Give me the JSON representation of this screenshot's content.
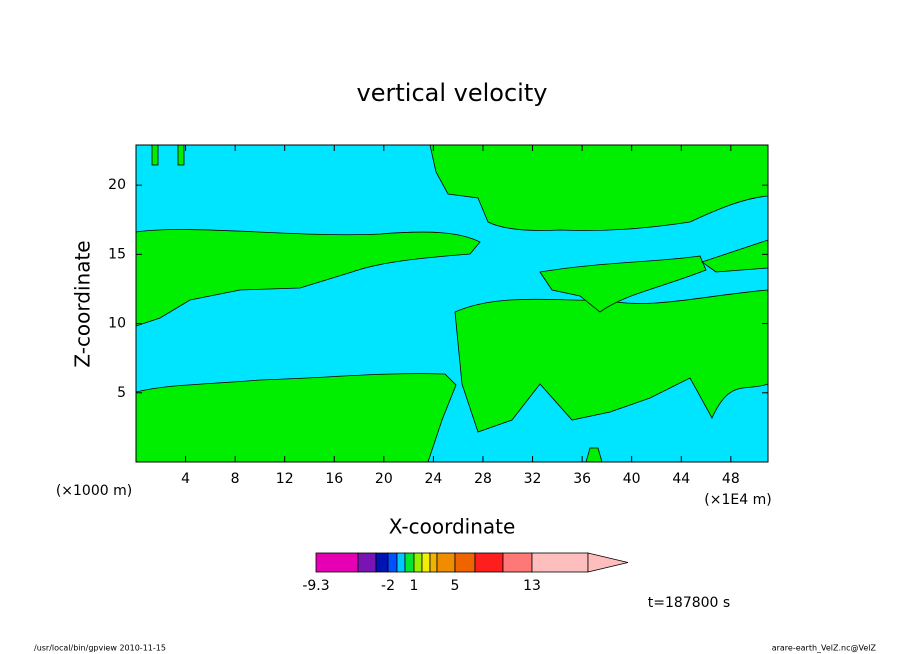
{
  "chart_data": {
    "type": "contour",
    "title": "vertical velocity",
    "x_label": "X-coordinate",
    "y_label": "Z-coordinate",
    "x_unit_left": "(×1000 m)",
    "x_unit_right": "(×1E4 m)",
    "xlim": [
      0,
      51
    ],
    "ylim": [
      0,
      22.9
    ],
    "xticks": [
      4,
      8,
      12,
      16,
      20,
      24,
      28,
      32,
      36,
      40,
      44,
      48
    ],
    "yticks": [
      5,
      10,
      15,
      20
    ],
    "field_colors": [
      "#00e5ff",
      "#00ee00"
    ],
    "colorbar_colors": [
      "#e600b4",
      "#7814b4",
      "#0014b4",
      "#0050ff",
      "#00c8ff",
      "#00e632",
      "#96f000",
      "#f0f000",
      "#f0b400",
      "#f08c00",
      "#f06400",
      "#ff1e1e",
      "#ff7878",
      "#ffbebe"
    ],
    "colorbar_labels": [
      "-9.3",
      "-2",
      "1",
      "5",
      "13"
    ],
    "time_label": "t=187800 s",
    "footer_left": "/usr/local/bin/gpview   2010-11-15",
    "footer_right": "arare-earth_VelZ.nc@VelZ"
  }
}
